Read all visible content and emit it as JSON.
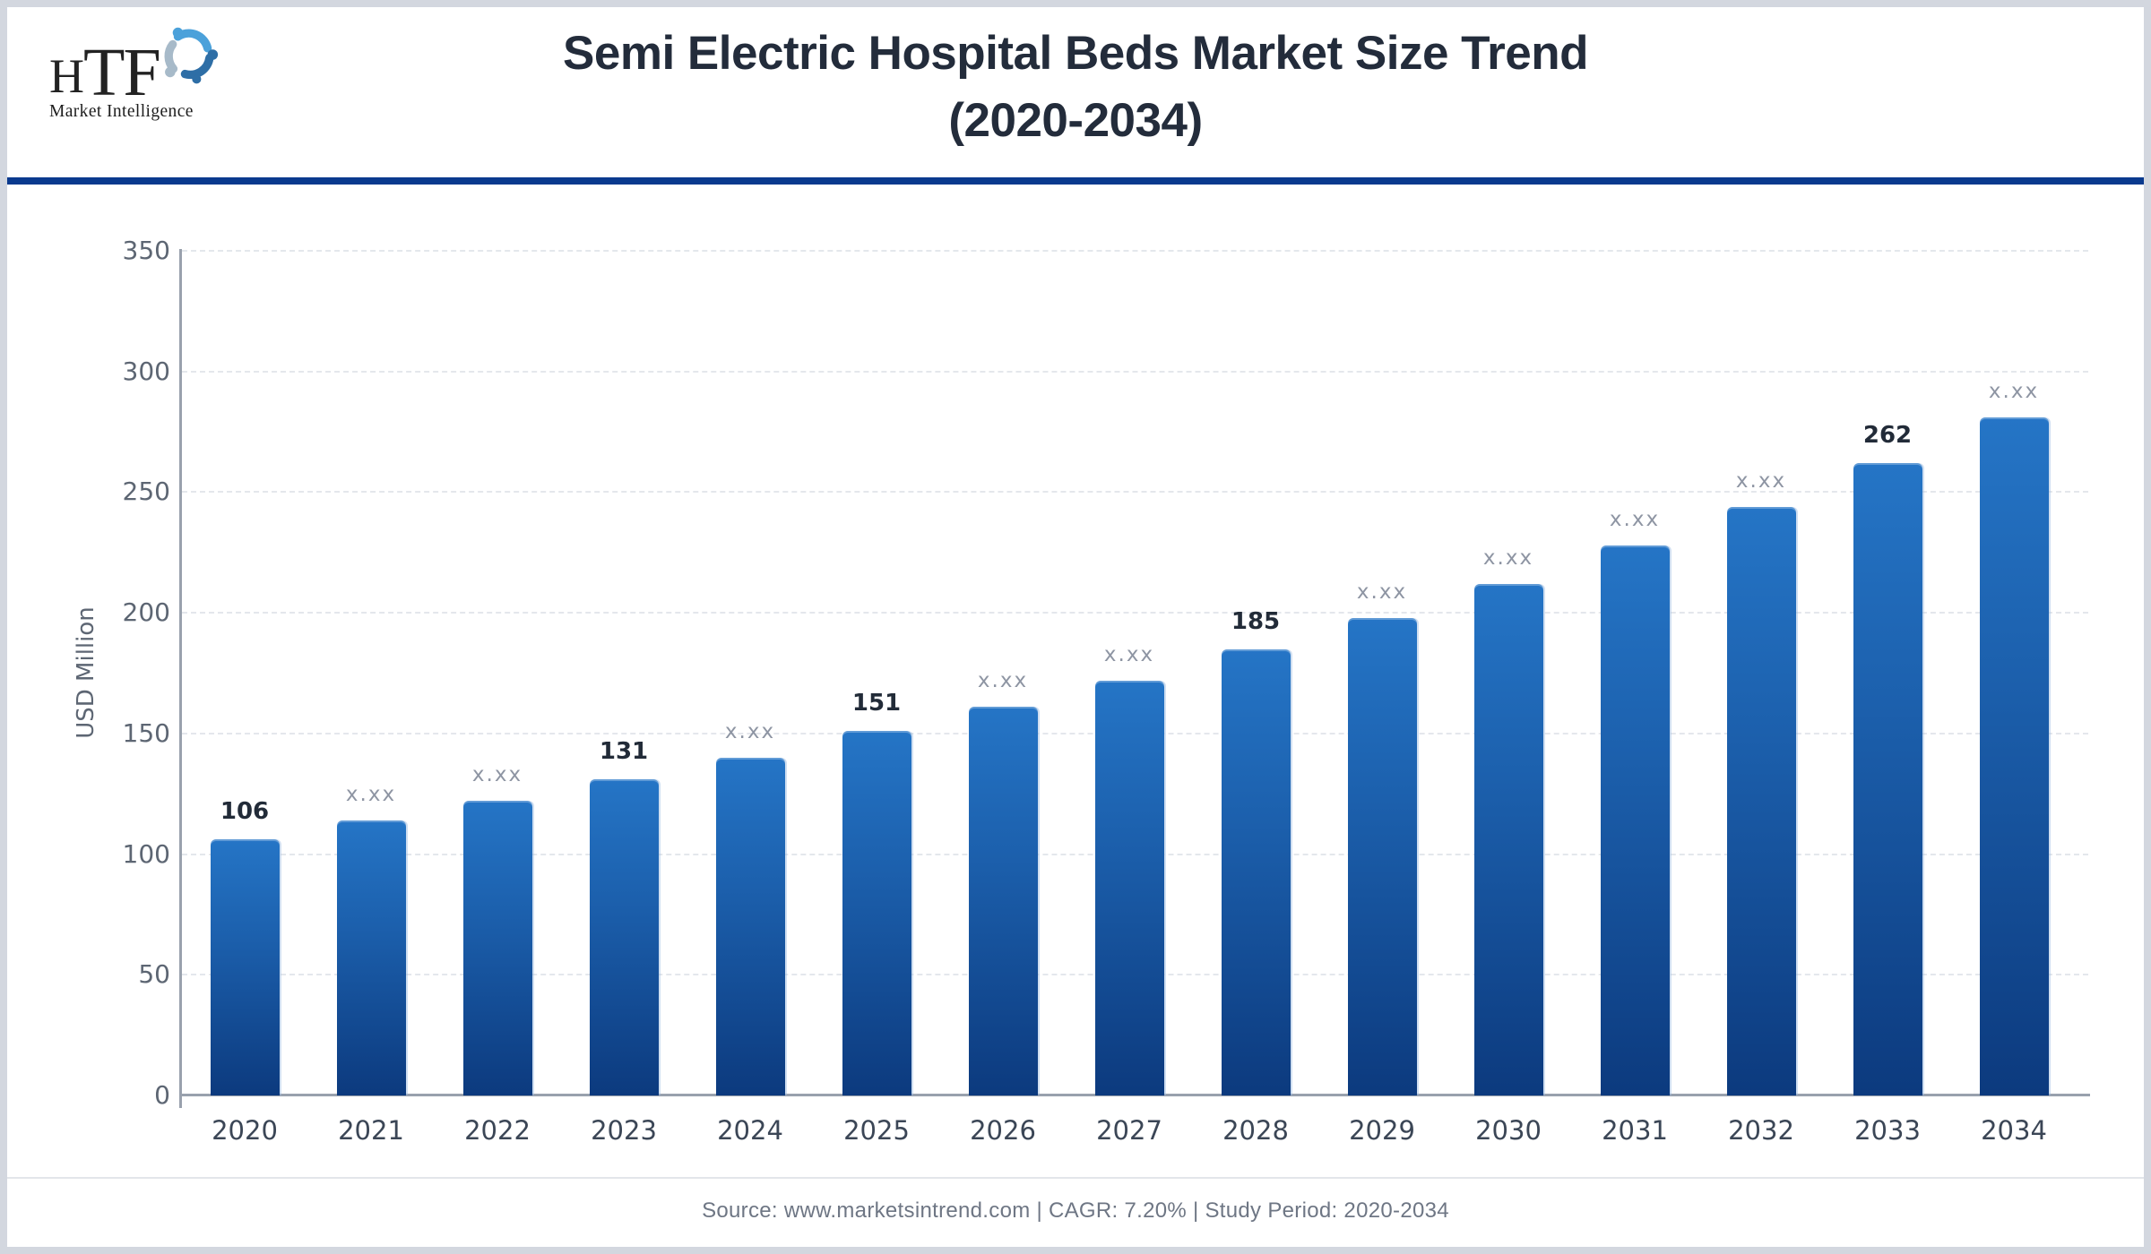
{
  "header": {
    "logo": {
      "letters": [
        "H",
        "T",
        "F"
      ],
      "tagline": "Market Intelligence",
      "swirl_colors": [
        "#4ba1da",
        "#a7bac9",
        "#2e6ea6"
      ]
    },
    "title_line1": "Semi Electric Hospital Beds Market Size Trend",
    "title_line2": "(2020-2034)",
    "rule_color": "#0a3a8e"
  },
  "chart_data": {
    "type": "bar",
    "title": "Semi Electric Hospital Beds Market Size Trend (2020-2034)",
    "categories": [
      "2020",
      "2021",
      "2022",
      "2023",
      "2024",
      "2025",
      "2026",
      "2027",
      "2028",
      "2029",
      "2030",
      "2031",
      "2032",
      "2033",
      "2034"
    ],
    "values": [
      106,
      114,
      122,
      131,
      140,
      151,
      161,
      172,
      185,
      198,
      212,
      228,
      244,
      262,
      281
    ],
    "bar_labels": [
      "106",
      "x.xx",
      "x.xx",
      "131",
      "x.xx",
      "151",
      "x.xx",
      "x.xx",
      "185",
      "x.xx",
      "x.xx",
      "x.xx",
      "x.xx",
      "262",
      "x.xx"
    ],
    "xlabel": "",
    "ylabel": "USD Million",
    "ylim": [
      0,
      350
    ],
    "ytick_step": 50,
    "grid": "horizontal-dashed",
    "legend": "none",
    "bar_color_top": "#2575c6",
    "bar_color_bottom": "#0c3a7e",
    "value_label_strong_color": "#222b38",
    "value_label_muted_color": "#8e95a3"
  },
  "footer": {
    "text": "Source: www.marketsintrend.com  |  CAGR: 7.20%  |  Study Period: 2020-2034"
  }
}
